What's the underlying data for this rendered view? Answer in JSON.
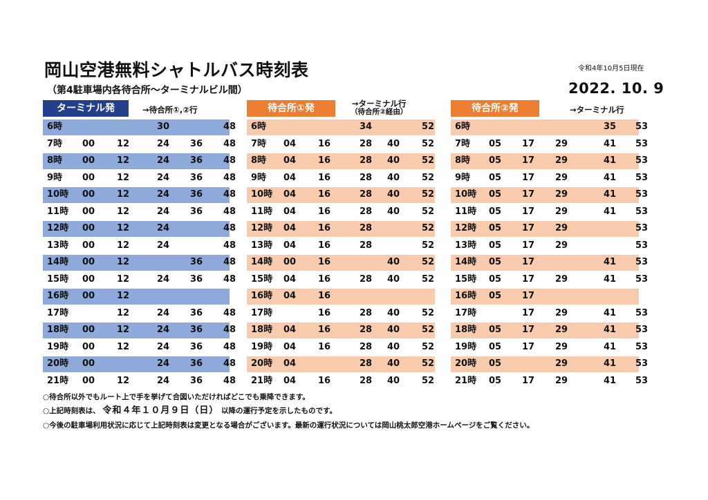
{
  "header": {
    "title": "岡山空港無料シャトルバス時刻表",
    "subtitle": "（第4駐車場内各待合所～ターミナルビル間）",
    "as_of": "令和4年10月5日現在",
    "effective_date": "2022. 10. 9"
  },
  "blocks": [
    {
      "name": "terminal",
      "badge": "ターミナル発",
      "dest_line1": "→待合所①,②行",
      "dest_line2": "",
      "rows": [
        {
          "h": "6時",
          "m": [
            "",
            "",
            "30",
            "",
            "48"
          ],
          "shade": true
        },
        {
          "h": "7時",
          "m": [
            "00",
            "12",
            "24",
            "36",
            "48"
          ],
          "shade": false
        },
        {
          "h": "8時",
          "m": [
            "00",
            "12",
            "24",
            "36",
            "48"
          ],
          "shade": true
        },
        {
          "h": "9時",
          "m": [
            "00",
            "12",
            "24",
            "36",
            "48"
          ],
          "shade": false
        },
        {
          "h": "10時",
          "m": [
            "00",
            "12",
            "24",
            "36",
            "48"
          ],
          "shade": true
        },
        {
          "h": "11時",
          "m": [
            "00",
            "12",
            "24",
            "36",
            "48"
          ],
          "shade": false
        },
        {
          "h": "12時",
          "m": [
            "00",
            "12",
            "24",
            "",
            "48"
          ],
          "shade": true
        },
        {
          "h": "13時",
          "m": [
            "00",
            "12",
            "24",
            "",
            "48"
          ],
          "shade": false
        },
        {
          "h": "14時",
          "m": [
            "00",
            "12",
            "",
            "36",
            "48"
          ],
          "shade": true
        },
        {
          "h": "15時",
          "m": [
            "00",
            "12",
            "24",
            "36",
            "48"
          ],
          "shade": false
        },
        {
          "h": "16時",
          "m": [
            "00",
            "12",
            "",
            "",
            ""
          ],
          "shade": true
        },
        {
          "h": "17時",
          "m": [
            "",
            "12",
            "24",
            "36",
            "48"
          ],
          "shade": false
        },
        {
          "h": "18時",
          "m": [
            "00",
            "12",
            "24",
            "36",
            "48"
          ],
          "shade": true
        },
        {
          "h": "19時",
          "m": [
            "00",
            "12",
            "24",
            "36",
            "48"
          ],
          "shade": false
        },
        {
          "h": "20時",
          "m": [
            "00",
            "",
            "24",
            "36",
            "48"
          ],
          "shade": true
        },
        {
          "h": "21時",
          "m": [
            "00",
            "12",
            "24",
            "36",
            "48"
          ],
          "shade": false
        }
      ]
    },
    {
      "name": "waiting-1",
      "badge": "待合所①発",
      "dest_line1": "→ターミナル行",
      "dest_line2": "（待合所②経由）",
      "rows": [
        {
          "h": "6時",
          "m": [
            "",
            "",
            "34",
            "",
            "52"
          ],
          "shade": true
        },
        {
          "h": "7時",
          "m": [
            "04",
            "16",
            "28",
            "40",
            "52"
          ],
          "shade": false
        },
        {
          "h": "8時",
          "m": [
            "04",
            "16",
            "28",
            "40",
            "52"
          ],
          "shade": true
        },
        {
          "h": "9時",
          "m": [
            "04",
            "16",
            "28",
            "40",
            "52"
          ],
          "shade": false
        },
        {
          "h": "10時",
          "m": [
            "04",
            "16",
            "28",
            "40",
            "52"
          ],
          "shade": true
        },
        {
          "h": "11時",
          "m": [
            "04",
            "16",
            "28",
            "40",
            "52"
          ],
          "shade": false
        },
        {
          "h": "12時",
          "m": [
            "04",
            "16",
            "28",
            "",
            "52"
          ],
          "shade": true
        },
        {
          "h": "13時",
          "m": [
            "04",
            "16",
            "28",
            "",
            "52"
          ],
          "shade": false
        },
        {
          "h": "14時",
          "m": [
            "00",
            "16",
            "",
            "40",
            "52"
          ],
          "shade": true
        },
        {
          "h": "15時",
          "m": [
            "04",
            "16",
            "28",
            "40",
            "52"
          ],
          "shade": false
        },
        {
          "h": "16時",
          "m": [
            "04",
            "16",
            "",
            "",
            ""
          ],
          "shade": true
        },
        {
          "h": "17時",
          "m": [
            "",
            "16",
            "28",
            "40",
            "52"
          ],
          "shade": false
        },
        {
          "h": "18時",
          "m": [
            "04",
            "16",
            "28",
            "40",
            "52"
          ],
          "shade": true
        },
        {
          "h": "19時",
          "m": [
            "04",
            "16",
            "28",
            "40",
            "52"
          ],
          "shade": false
        },
        {
          "h": "20時",
          "m": [
            "04",
            "",
            "28",
            "40",
            "52"
          ],
          "shade": true
        },
        {
          "h": "21時",
          "m": [
            "04",
            "16",
            "28",
            "40",
            "52"
          ],
          "shade": false
        }
      ]
    },
    {
      "name": "waiting-2",
      "badge": "待合所②発",
      "dest_line1": "→ターミナル行",
      "dest_line2": "",
      "rows": [
        {
          "h": "6時",
          "m": [
            "",
            "",
            "",
            "35",
            "53"
          ],
          "shade": true
        },
        {
          "h": "7時",
          "m": [
            "05",
            "17",
            "29",
            "41",
            "53"
          ],
          "shade": false
        },
        {
          "h": "8時",
          "m": [
            "05",
            "17",
            "29",
            "41",
            "53"
          ],
          "shade": true
        },
        {
          "h": "9時",
          "m": [
            "05",
            "17",
            "29",
            "41",
            "53"
          ],
          "shade": false
        },
        {
          "h": "10時",
          "m": [
            "05",
            "17",
            "29",
            "41",
            "53"
          ],
          "shade": true
        },
        {
          "h": "11時",
          "m": [
            "05",
            "17",
            "29",
            "41",
            "53"
          ],
          "shade": false
        },
        {
          "h": "12時",
          "m": [
            "05",
            "17",
            "29",
            "",
            "53"
          ],
          "shade": true
        },
        {
          "h": "13時",
          "m": [
            "05",
            "17",
            "29",
            "",
            "53"
          ],
          "shade": false
        },
        {
          "h": "14時",
          "m": [
            "05",
            "17",
            "",
            "41",
            "53"
          ],
          "shade": true
        },
        {
          "h": "15時",
          "m": [
            "05",
            "17",
            "29",
            "41",
            "53"
          ],
          "shade": false
        },
        {
          "h": "16時",
          "m": [
            "05",
            "17",
            "",
            "",
            ""
          ],
          "shade": true
        },
        {
          "h": "17時",
          "m": [
            "",
            "17",
            "29",
            "41",
            "53"
          ],
          "shade": false
        },
        {
          "h": "18時",
          "m": [
            "05",
            "17",
            "29",
            "41",
            "53"
          ],
          "shade": true
        },
        {
          "h": "19時",
          "m": [
            "05",
            "17",
            "29",
            "41",
            "53"
          ],
          "shade": false
        },
        {
          "h": "20時",
          "m": [
            "05",
            "",
            "29",
            "41",
            "53"
          ],
          "shade": true
        },
        {
          "h": "21時",
          "m": [
            "05",
            "17",
            "29",
            "41",
            "53"
          ],
          "shade": false
        }
      ]
    }
  ],
  "notes": {
    "n1": "○待合所以外でもルート上で手を挙げて合図いただければどこでも乗降できます。",
    "n2_pre": "○上記時刻表は、",
    "n2_em": "令和４年１０月９日（日）",
    "n2_post": "以降の運行予定を示したものです。",
    "n3": "○今後の駐車場利用状況に応じて上記時刻表は変更となる場合がございます。最新の運行状況については岡山桃太郎空港ホームページをご覧ください。"
  },
  "colors": {
    "terminal_badge": "#23408e",
    "terminal_shade": "#8eaadb",
    "waiting_badge": "#ed7d31",
    "waiting_shade": "#f8cbad"
  }
}
